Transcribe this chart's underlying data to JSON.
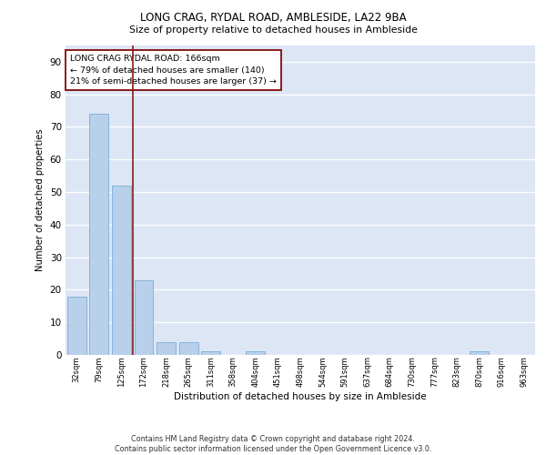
{
  "title1": "LONG CRAG, RYDAL ROAD, AMBLESIDE, LA22 9BA",
  "title2": "Size of property relative to detached houses in Ambleside",
  "xlabel": "Distribution of detached houses by size in Ambleside",
  "ylabel": "Number of detached properties",
  "categories": [
    "32sqm",
    "79sqm",
    "125sqm",
    "172sqm",
    "218sqm",
    "265sqm",
    "311sqm",
    "358sqm",
    "404sqm",
    "451sqm",
    "498sqm",
    "544sqm",
    "591sqm",
    "637sqm",
    "684sqm",
    "730sqm",
    "777sqm",
    "823sqm",
    "870sqm",
    "916sqm",
    "963sqm"
  ],
  "values": [
    18,
    74,
    52,
    23,
    4,
    4,
    1,
    0,
    1,
    0,
    0,
    0,
    0,
    0,
    0,
    0,
    0,
    0,
    1,
    0,
    0
  ],
  "bar_color": "#b8d0ea",
  "bar_edge_color": "#7aaed6",
  "background_color": "#dce6f5",
  "grid_color": "#ffffff",
  "vline_color": "#8b1a1a",
  "annotation_text": "LONG CRAG RYDAL ROAD: 166sqm\n← 79% of detached houses are smaller (140)\n21% of semi-detached houses are larger (37) →",
  "annotation_box_color": "#ffffff",
  "annotation_box_edge": "#8b1a1a",
  "ylim": [
    0,
    95
  ],
  "yticks": [
    0,
    10,
    20,
    30,
    40,
    50,
    60,
    70,
    80,
    90
  ],
  "footer1": "Contains HM Land Registry data © Crown copyright and database right 2024.",
  "footer2": "Contains public sector information licensed under the Open Government Licence v3.0."
}
